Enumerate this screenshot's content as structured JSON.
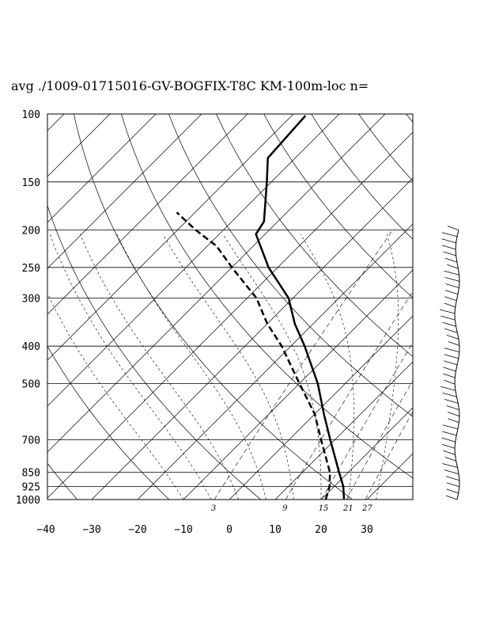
{
  "chart_data": {
    "type": "skew-t",
    "title": "avg ./1009-01715016-GV-BOGFIX-T8C KM-100m-loc n=",
    "pressure_levels": [
      100,
      150,
      200,
      250,
      300,
      400,
      500,
      700,
      850,
      925,
      1000
    ],
    "pressure_tick_labels": [
      "100",
      "150",
      "200",
      "250",
      "300",
      "400",
      "500",
      "700",
      "850",
      "925",
      "1000"
    ],
    "temperature_ticks": [
      -40,
      -30,
      -20,
      -10,
      0,
      10,
      20,
      30
    ],
    "temperature_tick_labels": [
      "−40",
      "−30",
      "−20",
      "−10",
      "0",
      "10",
      "20",
      "30"
    ],
    "mixing_ratio_labels": [
      "3",
      "9",
      "15",
      "21",
      "27"
    ],
    "series": [
      {
        "style": "solid",
        "points": [
          {
            "p": 1000,
            "t": 25
          },
          {
            "p": 925,
            "t": 22
          },
          {
            "p": 850,
            "t": 18
          },
          {
            "p": 700,
            "t": 9
          },
          {
            "p": 600,
            "t": 2
          },
          {
            "p": 500,
            "t": -6
          },
          {
            "p": 400,
            "t": -17
          },
          {
            "p": 350,
            "t": -24
          },
          {
            "p": 300,
            "t": -31
          },
          {
            "p": 250,
            "t": -42
          },
          {
            "p": 205,
            "t": -52
          },
          {
            "p": 190,
            "t": -53
          },
          {
            "p": 150,
            "t": -61
          },
          {
            "p": 130,
            "t": -66
          },
          {
            "p": 101,
            "t": -67
          }
        ]
      },
      {
        "style": "dashed",
        "points": [
          {
            "p": 1000,
            "t": 21
          },
          {
            "p": 925,
            "t": 19
          },
          {
            "p": 850,
            "t": 16
          },
          {
            "p": 700,
            "t": 7
          },
          {
            "p": 600,
            "t": 0
          },
          {
            "p": 500,
            "t": -10
          },
          {
            "p": 400,
            "t": -22
          },
          {
            "p": 350,
            "t": -30
          },
          {
            "p": 300,
            "t": -38
          },
          {
            "p": 250,
            "t": -50
          },
          {
            "p": 220,
            "t": -58
          },
          {
            "p": 200,
            "t": -66
          },
          {
            "p": 180,
            "t": -74
          }
        ]
      }
    ],
    "wind_barbs": "right-hand column from 1000 hPa to about 200 hPa"
  }
}
